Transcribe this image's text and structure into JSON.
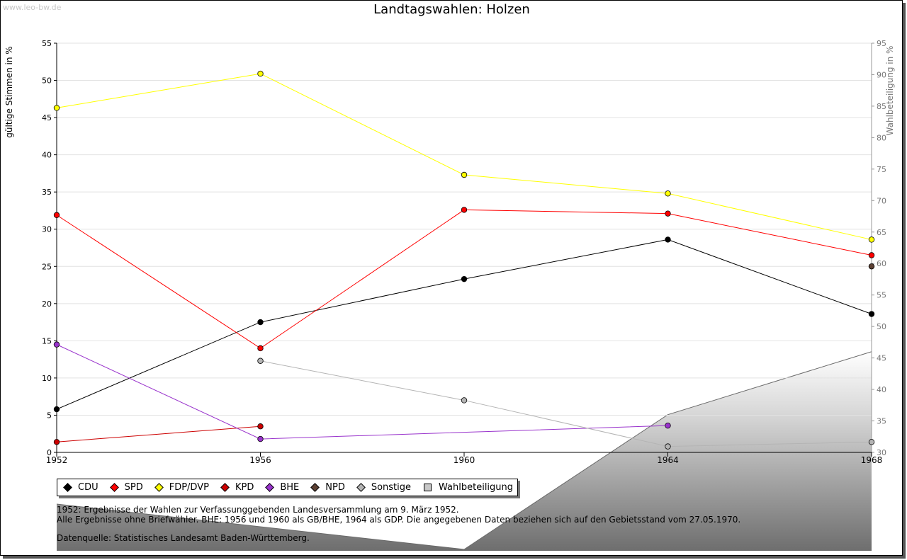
{
  "watermark": "www.leo-bw.de",
  "title": "Landtagswahlen: Holzen",
  "chart_data": {
    "type": "line",
    "title": "Landtagswahlen: Holzen",
    "x": [
      1952,
      1956,
      1960,
      1964,
      1968
    ],
    "ylabel": "gültige Stimmen in %",
    "ylabel_right": "Wahlbeteiligung in %",
    "ylim": [
      0,
      55
    ],
    "yticks": [
      0,
      5,
      10,
      15,
      20,
      25,
      30,
      35,
      40,
      45,
      50,
      55
    ],
    "ylim_right": [
      30,
      95
    ],
    "yticks_right": [
      30,
      35,
      40,
      45,
      50,
      55,
      60,
      65,
      70,
      75,
      80,
      85,
      90,
      95
    ],
    "grid": true,
    "series": [
      {
        "name": "CDU",
        "color": "#000000",
        "values": [
          5.8,
          17.5,
          23.3,
          28.6,
          18.6
        ]
      },
      {
        "name": "SPD",
        "color": "#ff0000",
        "values": [
          31.9,
          14.0,
          32.6,
          32.1,
          26.5
        ]
      },
      {
        "name": "FDP/DVP",
        "color": "#ffff00",
        "values": [
          46.3,
          50.9,
          37.3,
          34.8,
          28.6
        ]
      },
      {
        "name": "KPD",
        "color": "#cc0000",
        "values": [
          1.4,
          3.5,
          null,
          null,
          null
        ]
      },
      {
        "name": "BHE",
        "color": "#9933cc",
        "values": [
          14.5,
          1.8,
          null,
          3.6,
          null
        ]
      },
      {
        "name": "NPD",
        "color": "#5c4033",
        "values": [
          null,
          null,
          null,
          null,
          25.0
        ]
      },
      {
        "name": "Sonstige",
        "color": "#b4b4b4",
        "values": [
          null,
          12.3,
          7.0,
          0.8,
          1.4
        ]
      }
    ],
    "turnout": {
      "name": "Wahlbeteiligung",
      "values": [
        null,
        null,
        null,
        36.0,
        46.0
      ]
    },
    "legend_position": "bottom"
  },
  "legend": [
    {
      "label": "CDU",
      "color": "#000000",
      "shape": "diamond"
    },
    {
      "label": "SPD",
      "color": "#ff0000",
      "shape": "diamond"
    },
    {
      "label": "FDP/DVP",
      "color": "#ffff00",
      "shape": "diamond"
    },
    {
      "label": "KPD",
      "color": "#cc0000",
      "shape": "diamond"
    },
    {
      "label": "BHE",
      "color": "#9933cc",
      "shape": "diamond"
    },
    {
      "label": "NPD",
      "color": "#5c4033",
      "shape": "diamond"
    },
    {
      "label": "Sonstige",
      "color": "#b4b4b4",
      "shape": "diamond"
    },
    {
      "label": "Wahlbeteiligung",
      "color": "#c8c8c8",
      "shape": "square"
    }
  ],
  "notes": {
    "line1": "1952: Ergebnisse der Wahlen zur Verfassunggebenden Landesversammlung am 9. März 1952.",
    "line2": "Alle Ergebnisse ohne Briefwähler. BHE: 1956 und 1960 als GB/BHE, 1964 als GDP. Die angegebenen Daten beziehen sich auf den Gebietsstand vom 27.05.1970.",
    "source": "Datenquelle: Statistisches Landesamt Baden-Württemberg."
  }
}
